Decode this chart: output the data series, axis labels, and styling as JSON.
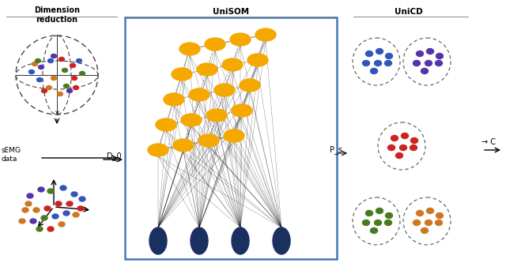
{
  "title_left": "Dimension\nreduction",
  "title_mid": "UniSOM",
  "title_right": "UniCD",
  "label_semg": "sEMG\ndata",
  "label_d0": "D_0",
  "label_ps": "P_s",
  "arrow_final": "→ C",
  "colors": {
    "blue": "#3355bb",
    "red": "#cc2222",
    "green": "#4a7a1e",
    "orange": "#cc7722",
    "purple": "#5533aa",
    "dark_navy": "#1a3060",
    "yellow": "#f5a800",
    "box_border": "#4477bb",
    "bg": "#ffffff",
    "gray": "#888888",
    "darkgray": "#444444"
  }
}
